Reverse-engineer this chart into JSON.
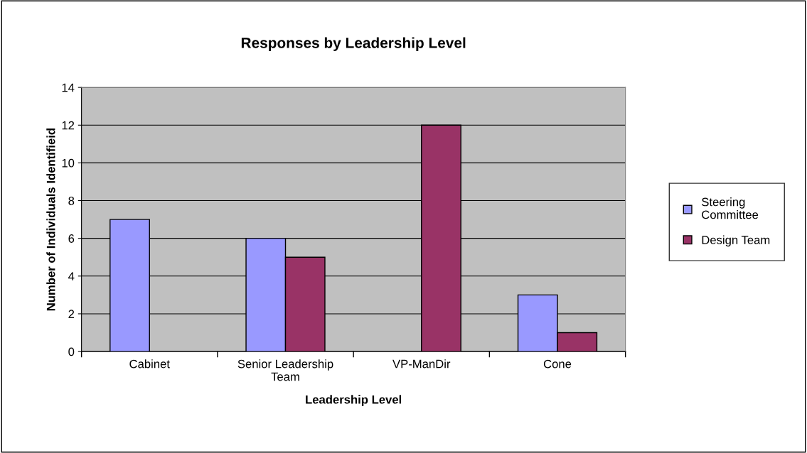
{
  "chart_data": {
    "type": "bar",
    "title": "Responses by Leadership Level",
    "xlabel": "Leadership Level",
    "ylabel": "Number of Individuals Identifieid",
    "categories": [
      "Cabinet",
      "Senior Leadership\nTeam",
      "VP-ManDir",
      "Cone"
    ],
    "series": [
      {
        "name": "Steering\nCommittee",
        "color": "#9999ff",
        "values": [
          7,
          6,
          null,
          3
        ]
      },
      {
        "name": "Design Team",
        "color": "#993366",
        "values": [
          null,
          5,
          12,
          1
        ]
      }
    ],
    "ylim": [
      0,
      14
    ],
    "yticks": [
      0,
      2,
      4,
      6,
      8,
      10,
      12,
      14
    ],
    "grid": "y",
    "legend": "right"
  }
}
